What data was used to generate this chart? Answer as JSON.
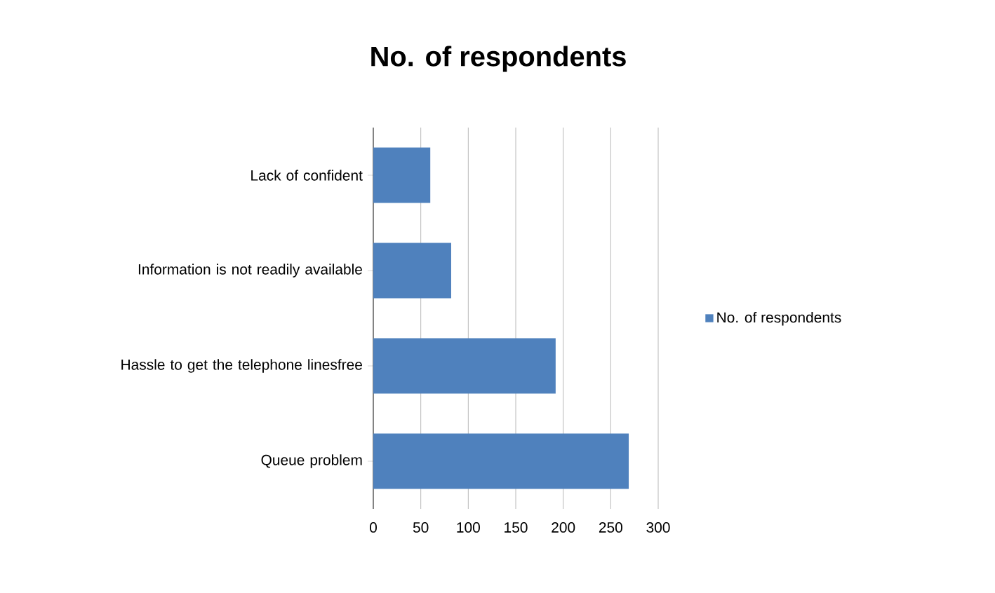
{
  "chart_data": {
    "type": "bar",
    "orientation": "horizontal",
    "title": "No. of respondents",
    "categories": [
      "Lack of confident",
      "Information is not readily available",
      "Hassle to get the telephone linesfree",
      "Queue problem"
    ],
    "series": [
      {
        "name": "No. of respondents",
        "color": "#4f81bd",
        "values": [
          60,
          82,
          192,
          269
        ]
      }
    ],
    "xlim": [
      0,
      300
    ],
    "xticks": [
      0,
      50,
      100,
      150,
      200,
      250,
      300
    ],
    "grid": "x",
    "legend": "right"
  }
}
